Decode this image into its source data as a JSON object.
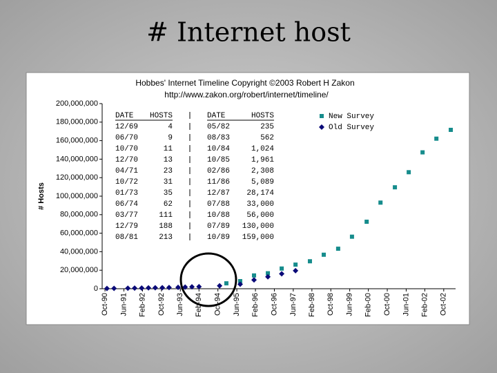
{
  "slide_title": "# Internet host",
  "chart_data": {
    "type": "scatter",
    "title": "Hobbes' Internet Timeline Copyright ©2003 Robert H Zakon",
    "subtitle": "http://www.zakon.org/robert/internet/timeline/",
    "y_label": "# Hosts",
    "xlim": [
      1990.65,
      2003.17
    ],
    "xticks": [
      {
        "value": 1990.75,
        "label": "Oct-90"
      },
      {
        "value": 1991.42,
        "label": "Jun-91"
      },
      {
        "value": 1992.08,
        "label": "Feb-92"
      },
      {
        "value": 1992.75,
        "label": "Oct-92"
      },
      {
        "value": 1993.42,
        "label": "Jun-93"
      },
      {
        "value": 1994.08,
        "label": "Feb-94"
      },
      {
        "value": 1994.75,
        "label": "Oct-94"
      },
      {
        "value": 1995.42,
        "label": "Jun-95"
      },
      {
        "value": 1996.08,
        "label": "Feb-96"
      },
      {
        "value": 1996.75,
        "label": "Oct-96"
      },
      {
        "value": 1997.42,
        "label": "Jun-97"
      },
      {
        "value": 1998.08,
        "label": "Feb-98"
      },
      {
        "value": 1998.75,
        "label": "Oct-98"
      },
      {
        "value": 1999.42,
        "label": "Jun-99"
      },
      {
        "value": 2000.08,
        "label": "Feb-00"
      },
      {
        "value": 2000.75,
        "label": "Oct-00"
      },
      {
        "value": 2001.42,
        "label": "Jun-01"
      },
      {
        "value": 2002.08,
        "label": "Feb-02"
      },
      {
        "value": 2002.75,
        "label": "Oct-02"
      }
    ],
    "ylim": [
      0,
      200000000
    ],
    "yticks": [
      0,
      {
        "value": 20000000,
        "label": "20,000,000"
      },
      {
        "value": 40000000,
        "label": "40,000,000"
      },
      {
        "value": 60000000,
        "label": "60,000,000"
      },
      {
        "value": 80000000,
        "label": "80,000,000"
      },
      {
        "value": 100000000,
        "label": "100,000,000"
      },
      {
        "value": 120000000,
        "label": "120,000,000"
      },
      {
        "value": 140000000,
        "label": "140,000,000"
      },
      {
        "value": 160000000,
        "label": "160,000,000"
      },
      {
        "value": 180000000,
        "label": "180,000,000"
      },
      {
        "value": 200000000,
        "label": "200,000,000"
      }
    ],
    "legend": "top-right",
    "series": [
      {
        "name": "New Survey",
        "color": "#168c8c",
        "marker": "square",
        "x": [
          1995.05,
          1995.54,
          1996.03,
          1996.52,
          1997.01,
          1997.5,
          1998.01,
          1998.5,
          1999.01,
          1999.5,
          2000.02,
          2000.51,
          2001.02,
          2001.51,
          2002.0,
          2002.49,
          2003.0
        ],
        "values": [
          5846000,
          8200000,
          14352000,
          16729000,
          21819000,
          26053000,
          29670000,
          36739000,
          43230000,
          56218000,
          72398000,
          93047000,
          109574000,
          125888000,
          147345000,
          162128000,
          171638000
        ]
      },
      {
        "name": "Old Survey",
        "color": "#0a0a78",
        "marker": "diamond",
        "x": [
          1990.82,
          1991.07,
          1991.56,
          1991.8,
          1992.05,
          1992.29,
          1992.53,
          1992.78,
          1993.02,
          1993.34,
          1993.59,
          1993.83,
          1994.08,
          1994.81,
          1995.54,
          1996.03,
          1996.52,
          1997.01,
          1997.5
        ],
        "values": [
          313000,
          376000,
          535000,
          617000,
          727000,
          890000,
          992000,
          1136000,
          1313000,
          1486000,
          1776000,
          2056000,
          2217000,
          3212000,
          4852000,
          9472000,
          12881000,
          16146000,
          19540000
        ]
      }
    ],
    "table": {
      "header": [
        "DATE",
        "HOSTS",
        "DATE",
        "HOSTS"
      ],
      "rows": [
        [
          "12/69",
          "4",
          "05/82",
          "235"
        ],
        [
          "06/70",
          "9",
          "08/83",
          "562"
        ],
        [
          "10/70",
          "11",
          "10/84",
          "1,024"
        ],
        [
          "12/70",
          "13",
          "10/85",
          "1,961"
        ],
        [
          "04/71",
          "23",
          "02/86",
          "2,308"
        ],
        [
          "10/72",
          "31",
          "11/86",
          "5,089"
        ],
        [
          "01/73",
          "35",
          "12/87",
          "28,174"
        ],
        [
          "06/74",
          "62",
          "07/88",
          "33,000"
        ],
        [
          "03/77",
          "111",
          "10/88",
          "56,000"
        ],
        [
          "12/79",
          "188",
          "07/89",
          "130,000"
        ],
        [
          "08/81",
          "213",
          "10/89",
          "159,000"
        ]
      ]
    }
  }
}
